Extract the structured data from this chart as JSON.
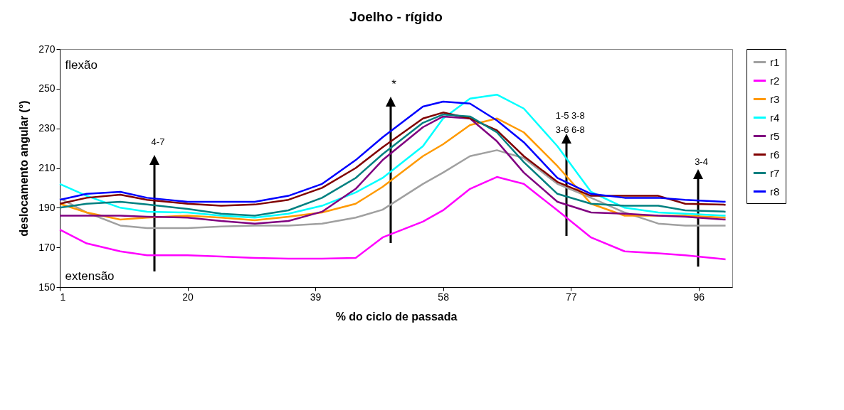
{
  "chart_data": {
    "type": "line",
    "title": "Joelho - rígido",
    "xlabel": "% do ciclo de passada",
    "ylabel": "deslocamento angular (°)",
    "x": [
      1,
      5,
      10,
      14,
      20,
      25,
      30,
      35,
      40,
      45,
      49,
      55,
      58,
      62,
      66,
      70,
      75,
      80,
      85,
      90,
      94,
      100
    ],
    "xlim": [
      1,
      101
    ],
    "xticks": [
      1,
      20,
      39,
      58,
      77,
      96
    ],
    "ylim": [
      150,
      270
    ],
    "yticks": [
      150,
      170,
      190,
      210,
      230,
      250,
      270
    ],
    "grid": false,
    "legend": "right",
    "marker": "none",
    "line_style": "solid",
    "series": [
      {
        "name": "r1",
        "color": "#a0a0a0",
        "values": [
          194.8,
          187.6,
          181,
          179.7,
          179.7,
          180.5,
          181,
          181,
          182,
          185,
          189,
          202,
          207.7,
          216,
          219,
          215,
          202,
          195,
          187.6,
          182,
          181,
          181
        ]
      },
      {
        "name": "r2",
        "color": "#ff00ff",
        "values": [
          179,
          172,
          168,
          166,
          166,
          165.4,
          164.7,
          164.3,
          164.3,
          164.7,
          175,
          183,
          188.7,
          199.5,
          205.5,
          202,
          188.7,
          175,
          168,
          167,
          166,
          164
        ]
      },
      {
        "name": "r3",
        "color": "#ff9900",
        "values": [
          192,
          187.6,
          184,
          185,
          186,
          185,
          183.7,
          185.5,
          187.6,
          192,
          200.5,
          216,
          222,
          231.7,
          235,
          228,
          211,
          192,
          186,
          186,
          186,
          185
        ]
      },
      {
        "name": "r4",
        "color": "#00ffff",
        "values": [
          202,
          196,
          190,
          188,
          187.6,
          186,
          185,
          187,
          191,
          197.7,
          205,
          221,
          235,
          245,
          247,
          240,
          221,
          198,
          190,
          187.6,
          187,
          186
        ]
      },
      {
        "name": "r5",
        "color": "#800080",
        "values": [
          186,
          186,
          186,
          185.5,
          185,
          183.3,
          182,
          183.3,
          188,
          199.5,
          214,
          230.6,
          236,
          235,
          223.5,
          207.7,
          193,
          187.6,
          187,
          186,
          185.5,
          184
        ]
      },
      {
        "name": "r6",
        "color": "#800000",
        "values": [
          192,
          195,
          196.6,
          194,
          192,
          191,
          191.6,
          194,
          200,
          210,
          220.5,
          235,
          238,
          235,
          229,
          216,
          203,
          196,
          196,
          196,
          192,
          191.5
        ]
      },
      {
        "name": "r7",
        "color": "#008080",
        "values": [
          190,
          192,
          193,
          191.6,
          189.4,
          187,
          186,
          188.7,
          195,
          205,
          217,
          232.8,
          237,
          236,
          228,
          213,
          197,
          192,
          191,
          191,
          188.7,
          188
        ]
      },
      {
        "name": "r8",
        "color": "#0000ff",
        "values": [
          194,
          197,
          198,
          195,
          193,
          193,
          193,
          196,
          202,
          214,
          225.5,
          241,
          243.5,
          242.5,
          234,
          223,
          205,
          197,
          195,
          195,
          194,
          193
        ]
      }
    ],
    "annotations": [
      "flexão",
      "extensão",
      "4-7",
      "*",
      "1-5  3-8\n3-6  6-8",
      "3-4"
    ]
  }
}
